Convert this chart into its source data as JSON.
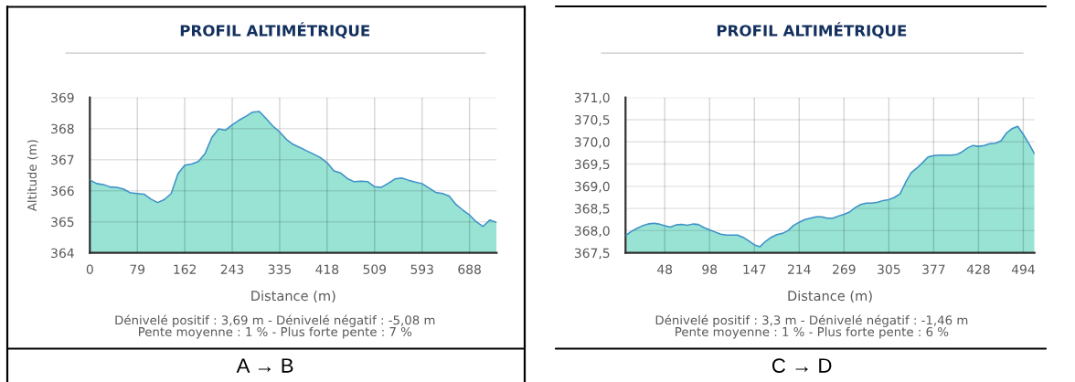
{
  "chart_data": [
    {
      "type": "area",
      "title": "PROFIL ALTIMÉTRIQUE",
      "xlabel": "Distance (m)",
      "ylabel": "Altitude (m)",
      "categories": [
        "0",
        null,
        null,
        null,
        null,
        null,
        null,
        "79",
        null,
        null,
        null,
        null,
        null,
        null,
        "162",
        null,
        null,
        null,
        null,
        null,
        null,
        "243",
        null,
        null,
        null,
        null,
        null,
        null,
        "335",
        null,
        null,
        null,
        null,
        null,
        null,
        "418",
        null,
        null,
        null,
        null,
        null,
        null,
        "509",
        null,
        null,
        null,
        null,
        null,
        null,
        "593",
        null,
        null,
        null,
        null,
        null,
        null,
        "688",
        null,
        null,
        null,
        null
      ],
      "series": [
        {
          "color": "#98e3d4",
          "values": [
            366.35,
            366.23,
            366.2,
            366.12,
            366.11,
            366.05,
            365.93,
            365.91,
            365.89,
            365.73,
            365.62,
            365.72,
            365.91,
            366.55,
            366.82,
            366.86,
            366.94,
            367.2,
            367.72,
            367.99,
            367.95,
            368.12,
            368.27,
            368.39,
            368.53,
            368.55,
            368.32,
            368.08,
            367.89,
            367.65,
            367.49,
            367.39,
            367.28,
            367.18,
            367.07,
            366.9,
            366.64,
            366.57,
            366.39,
            366.29,
            366.31,
            366.29,
            366.13,
            366.11,
            366.24,
            366.38,
            366.41,
            366.34,
            366.28,
            366.23,
            366.09,
            365.95,
            365.91,
            365.83,
            365.56,
            365.38,
            365.22,
            365.0,
            364.85,
            365.06,
            364.98
          ]
        }
      ],
      "ylim": [
        364,
        369
      ],
      "yticks": [
        364,
        365,
        366,
        367,
        368,
        369
      ],
      "grid": true,
      "annotations": [
        "Dénivelé positif : 3,69 m - Dénivelé négatif : -5,08 m",
        "Pente moyenne : 1 % - Plus forte pente : 7 %",
        "A → B"
      ]
    },
    {
      "type": "area",
      "title": "PROFIL ALTIMÉTRIQUE",
      "xlabel": "Distance (m)",
      "categories": [
        null,
        null,
        null,
        null,
        null,
        null,
        null,
        "48",
        null,
        null,
        null,
        null,
        null,
        null,
        null,
        "98",
        null,
        null,
        null,
        null,
        null,
        null,
        null,
        "147",
        null,
        null,
        null,
        null,
        null,
        null,
        null,
        "214",
        null,
        null,
        null,
        null,
        null,
        null,
        null,
        "269",
        null,
        null,
        null,
        null,
        null,
        null,
        null,
        "305",
        null,
        null,
        null,
        null,
        null,
        null,
        null,
        "377",
        null,
        null,
        null,
        null,
        null,
        null,
        null,
        "428",
        null,
        null,
        null,
        null,
        null,
        null,
        null,
        "494",
        null,
        null
      ],
      "series": [
        {
          "color": "#98e3d4",
          "values": [
            367.89,
            367.98,
            368.05,
            368.11,
            368.15,
            368.17,
            368.15,
            368.11,
            368.08,
            368.13,
            368.14,
            368.12,
            368.15,
            368.14,
            368.07,
            368.02,
            367.97,
            367.92,
            367.9,
            367.9,
            367.9,
            367.85,
            367.77,
            367.68,
            367.64,
            367.76,
            367.85,
            367.91,
            367.94,
            368.0,
            368.12,
            368.19,
            368.25,
            368.28,
            368.31,
            368.31,
            368.28,
            368.28,
            368.33,
            368.37,
            368.42,
            368.52,
            368.59,
            368.62,
            368.62,
            368.64,
            368.68,
            368.7,
            368.75,
            368.83,
            369.09,
            369.31,
            369.41,
            369.53,
            369.66,
            369.69,
            369.7,
            369.7,
            369.7,
            369.71,
            369.77,
            369.86,
            369.92,
            369.9,
            369.92,
            369.96,
            369.97,
            370.02,
            370.2,
            370.3,
            370.35,
            370.17,
            369.96,
            369.73
          ]
        }
      ],
      "ylim": [
        367.5,
        371.0
      ],
      "yticks": [
        {
          "value": 367.5,
          "label": "367,5"
        },
        {
          "value": 368.0,
          "label": "368,0"
        },
        {
          "value": 368.5,
          "label": "368,5"
        },
        {
          "value": 369.0,
          "label": "369,0"
        },
        {
          "value": 369.5,
          "label": "369,5"
        },
        {
          "value": 370.0,
          "label": "370,0"
        },
        {
          "value": 370.5,
          "label": "370,5"
        },
        {
          "value": 371.0,
          "label": "371,0"
        }
      ],
      "grid": true,
      "annotations": [
        "Dénivelé positif : 3,3 m - Dénivelé négatif : -1,46 m",
        "Pente moyenne : 1 % - Plus forte pente : 6 %",
        "C → D"
      ]
    }
  ]
}
